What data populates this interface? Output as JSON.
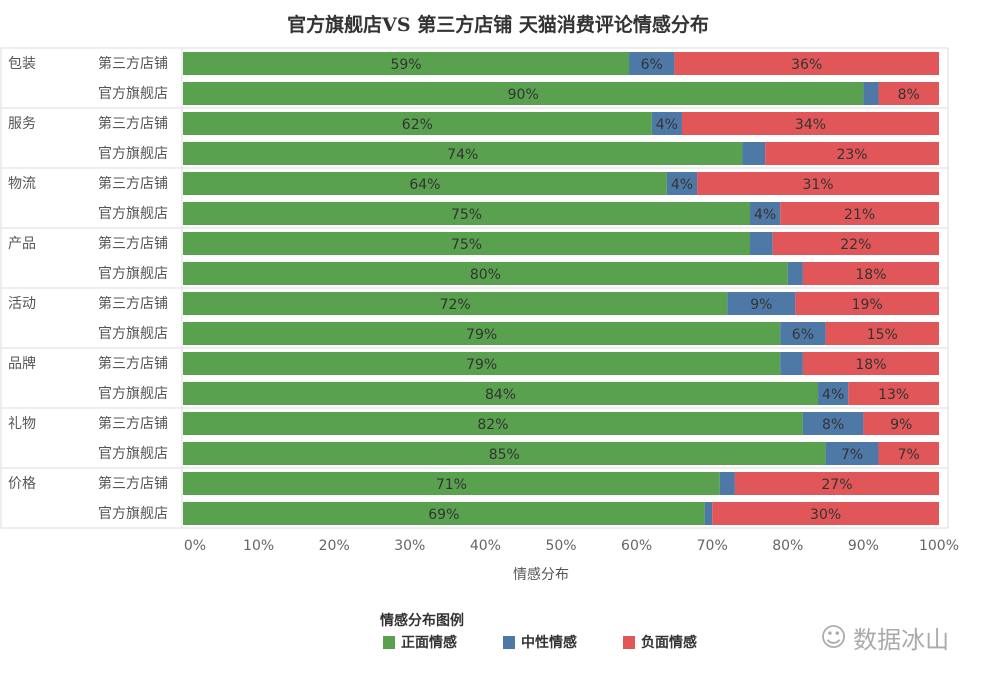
{
  "chart_data": {
    "type": "bar",
    "orientation": "horizontal-stacked-100",
    "title": "官方旗舰店VS 第三方店铺 天猫消费评论情感分布",
    "xlabel": "情感分布",
    "xlim": [
      0,
      100
    ],
    "xticks": [
      "0%",
      "10%",
      "20%",
      "30%",
      "40%",
      "50%",
      "60%",
      "70%",
      "80%",
      "90%",
      "100%"
    ],
    "grid": false,
    "legend_title": "情感分布图例",
    "legend_position": "bottom",
    "series": [
      {
        "name": "正面情感",
        "color": "#59a14f"
      },
      {
        "name": "中性情感",
        "color": "#4e79a7"
      },
      {
        "name": "负面情感",
        "color": "#e15759"
      }
    ],
    "groups": [
      {
        "name": "包装",
        "rows": [
          {
            "store": "第三方店铺",
            "values": [
              59,
              6,
              36
            ]
          },
          {
            "store": "官方旗舰店",
            "values": [
              90,
              2,
              8
            ]
          }
        ]
      },
      {
        "name": "服务",
        "rows": [
          {
            "store": "第三方店铺",
            "values": [
              62,
              4,
              34
            ]
          },
          {
            "store": "官方旗舰店",
            "values": [
              74,
              3,
              23
            ]
          }
        ]
      },
      {
        "name": "物流",
        "rows": [
          {
            "store": "第三方店铺",
            "values": [
              64,
              4,
              31
            ]
          },
          {
            "store": "官方旗舰店",
            "values": [
              75,
              4,
              21
            ]
          }
        ]
      },
      {
        "name": "产品",
        "rows": [
          {
            "store": "第三方店铺",
            "values": [
              75,
              3,
              22
            ]
          },
          {
            "store": "官方旗舰店",
            "values": [
              80,
              2,
              18
            ]
          }
        ]
      },
      {
        "name": "活动",
        "rows": [
          {
            "store": "第三方店铺",
            "values": [
              72,
              9,
              19
            ]
          },
          {
            "store": "官方旗舰店",
            "values": [
              79,
              6,
              15
            ]
          }
        ]
      },
      {
        "name": "品牌",
        "rows": [
          {
            "store": "第三方店铺",
            "values": [
              79,
              3,
              18
            ]
          },
          {
            "store": "官方旗舰店",
            "values": [
              84,
              4,
              13
            ]
          }
        ]
      },
      {
        "name": "礼物",
        "rows": [
          {
            "store": "第三方店铺",
            "values": [
              82,
              8,
              9
            ]
          },
          {
            "store": "官方旗舰店",
            "values": [
              85,
              7,
              7
            ]
          }
        ]
      },
      {
        "name": "价格",
        "rows": [
          {
            "store": "第三方店铺",
            "values": [
              71,
              2,
              27
            ]
          },
          {
            "store": "官方旗舰店",
            "values": [
              69,
              1,
              30
            ]
          }
        ]
      }
    ]
  },
  "watermark": "数据冰山"
}
